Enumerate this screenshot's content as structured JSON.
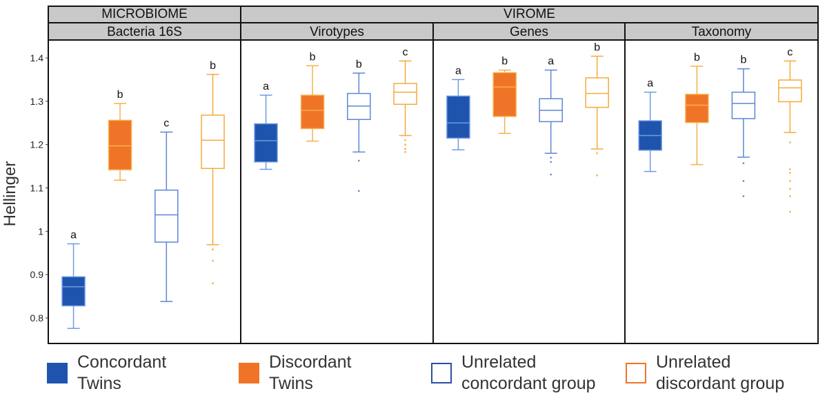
{
  "strip_top": [
    {
      "label": "MICROBIOME",
      "panels": [
        0
      ]
    },
    {
      "label": "VIROME",
      "panels": [
        1,
        2,
        3
      ]
    }
  ],
  "legend": [
    {
      "label": "Concordant\nTwins",
      "fill": "#1f54ae",
      "stroke": "#1f54ae"
    },
    {
      "label": "Discordant\nTwins",
      "fill": "#f07427",
      "stroke": "#f07427"
    },
    {
      "label": "Unrelated\nconcordant group",
      "fill": "#ffffff",
      "stroke": "#2a4fa0"
    },
    {
      "label": "Unrelated\ndiscordant group",
      "fill": "#ffffff",
      "stroke": "#f07427"
    }
  ],
  "colors": {
    "concordant_twins_fill": "#1f54ae",
    "concordant_twins_line": "#6d9be0",
    "discordant_twins_fill": "#f07427",
    "discordant_twins_line": "#f5b14a",
    "unrelated_concordant_line": "#5b86d4",
    "unrelated_discordant_line": "#f6a93a",
    "strip_background": "#c9c9c9"
  },
  "chart_data": {
    "type": "box",
    "ylabel": "Hellinger",
    "ylim": [
      0.75,
      1.45
    ],
    "yticks": [
      0.8,
      0.9,
      1,
      1.1,
      1.2,
      1.3,
      1.4
    ],
    "ytick_labels": [
      "0.8",
      "0.9",
      "1",
      "1.1",
      "1.2",
      "1.3",
      "1.4"
    ],
    "grid": false,
    "legend_position": "bottom",
    "groups": [
      "Concordant Twins",
      "Discordant Twins",
      "Unrelated concordant group",
      "Unrelated discordant group"
    ],
    "panels": [
      {
        "title": "Bacteria 16S",
        "boxes": [
          {
            "group": "Concordant Twins",
            "min": 0.776,
            "q1": 0.828,
            "median": 0.872,
            "q3": 0.895,
            "max": 0.971,
            "outliers": [],
            "letter": "a"
          },
          {
            "group": "Discordant Twins",
            "min": 1.118,
            "q1": 1.142,
            "median": 1.197,
            "q3": 1.256,
            "max": 1.295,
            "outliers": [],
            "letter": "b"
          },
          {
            "group": "Unrelated concordant group",
            "min": 0.838,
            "q1": 0.975,
            "median": 1.038,
            "q3": 1.095,
            "max": 1.229,
            "outliers": [],
            "letter": "c"
          },
          {
            "group": "Unrelated discordant group",
            "min": 0.969,
            "q1": 1.145,
            "median": 1.21,
            "q3": 1.268,
            "max": 1.362,
            "outliers": [
              0.958,
              0.932,
              0.88
            ],
            "letter": "b"
          }
        ]
      },
      {
        "title": "Virotypes",
        "boxes": [
          {
            "group": "Concordant Twins",
            "min": 1.143,
            "q1": 1.16,
            "median": 1.209,
            "q3": 1.248,
            "max": 1.314,
            "outliers": [],
            "letter": "a"
          },
          {
            "group": "Discordant Twins",
            "min": 1.208,
            "q1": 1.237,
            "median": 1.279,
            "q3": 1.314,
            "max": 1.382,
            "outliers": [],
            "letter": "b"
          },
          {
            "group": "Unrelated concordant group",
            "min": 1.183,
            "q1": 1.258,
            "median": 1.289,
            "q3": 1.318,
            "max": 1.365,
            "outliers": [
              1.163,
              1.093
            ],
            "letter": "b"
          },
          {
            "group": "Unrelated discordant group",
            "min": 1.221,
            "q1": 1.293,
            "median": 1.321,
            "q3": 1.341,
            "max": 1.393,
            "outliers": [
              1.21,
              1.2,
              1.19,
              1.183
            ],
            "letter": "c"
          }
        ]
      },
      {
        "title": "Genes",
        "boxes": [
          {
            "group": "Concordant Twins",
            "min": 1.188,
            "q1": 1.215,
            "median": 1.25,
            "q3": 1.312,
            "max": 1.35,
            "outliers": [],
            "letter": "a"
          },
          {
            "group": "Discordant Twins",
            "min": 1.226,
            "q1": 1.265,
            "median": 1.333,
            "q3": 1.366,
            "max": 1.372,
            "outliers": [],
            "letter": "b"
          },
          {
            "group": "Unrelated concordant group",
            "min": 1.18,
            "q1": 1.253,
            "median": 1.279,
            "q3": 1.306,
            "max": 1.372,
            "outliers": [
              1.17,
              1.16,
              1.131
            ],
            "letter": "a"
          },
          {
            "group": "Unrelated discordant group",
            "min": 1.19,
            "q1": 1.286,
            "median": 1.318,
            "q3": 1.354,
            "max": 1.404,
            "outliers": [
              1.18,
              1.129
            ],
            "letter": "b"
          }
        ]
      },
      {
        "title": "Taxonomy",
        "boxes": [
          {
            "group": "Concordant Twins",
            "min": 1.138,
            "q1": 1.187,
            "median": 1.221,
            "q3": 1.255,
            "max": 1.321,
            "outliers": [],
            "letter": "a"
          },
          {
            "group": "Discordant Twins",
            "min": 1.154,
            "q1": 1.251,
            "median": 1.291,
            "q3": 1.316,
            "max": 1.381,
            "outliers": [],
            "letter": "b"
          },
          {
            "group": "Unrelated concordant group",
            "min": 1.171,
            "q1": 1.26,
            "median": 1.295,
            "q3": 1.321,
            "max": 1.375,
            "outliers": [
              1.157,
              1.116,
              1.081
            ],
            "letter": "b"
          },
          {
            "group": "Unrelated discordant group",
            "min": 1.228,
            "q1": 1.299,
            "median": 1.331,
            "q3": 1.349,
            "max": 1.393,
            "outliers": [
              1.205,
              1.143,
              1.135,
              1.116,
              1.098,
              1.081,
              1.045
            ],
            "letter": "c"
          }
        ]
      }
    ]
  }
}
